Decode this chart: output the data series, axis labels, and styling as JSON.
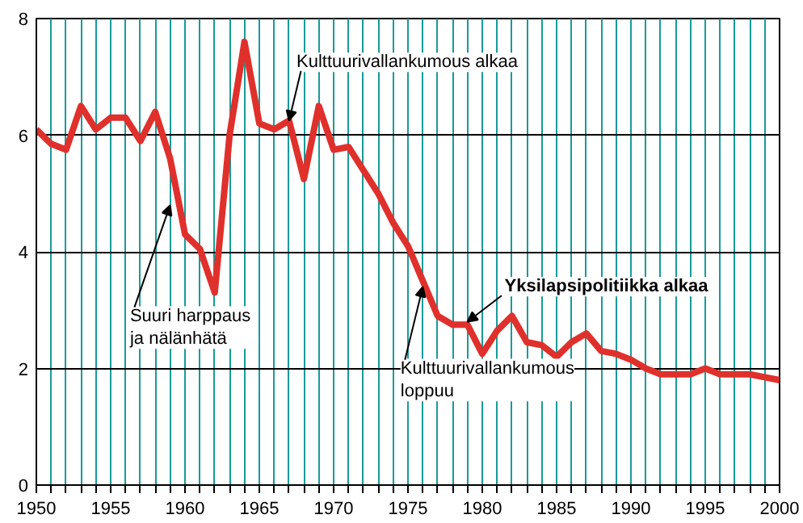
{
  "chart_data": {
    "type": "line",
    "x": [
      1950,
      1951,
      1952,
      1953,
      1954,
      1955,
      1956,
      1957,
      1958,
      1959,
      1960,
      1961,
      1962,
      1963,
      1964,
      1965,
      1966,
      1967,
      1968,
      1969,
      1970,
      1971,
      1972,
      1973,
      1974,
      1975,
      1976,
      1977,
      1978,
      1979,
      1980,
      1981,
      1982,
      1983,
      1984,
      1985,
      1986,
      1987,
      1988,
      1989,
      1990,
      1991,
      1992,
      1993,
      1994,
      1995,
      1996,
      1997,
      1998,
      1999,
      2000
    ],
    "series": [
      {
        "color": "#e0302c",
        "values": [
          6.1,
          5.85,
          5.75,
          6.5,
          6.1,
          6.3,
          6.3,
          5.9,
          6.4,
          5.6,
          4.3,
          4.05,
          3.3,
          6.0,
          7.6,
          6.2,
          6.1,
          6.25,
          5.25,
          6.5,
          5.75,
          5.8,
          5.4,
          5.0,
          4.5,
          4.1,
          3.5,
          2.9,
          2.75,
          2.75,
          2.25,
          2.65,
          2.9,
          2.45,
          2.4,
          2.2,
          2.45,
          2.6,
          2.3,
          2.25,
          2.15,
          2.0,
          1.9,
          1.9,
          1.9,
          2.0,
          1.9,
          1.9,
          1.9,
          1.85,
          1.8
        ]
      }
    ],
    "xlim": [
      1950,
      2000
    ],
    "ylim": [
      0,
      8
    ],
    "xticks": [
      1950,
      {
        "value": 1951,
        "label": null
      },
      {
        "value": 1952,
        "label": null
      },
      {
        "value": 1953,
        "label": null
      },
      {
        "value": 1954,
        "label": null
      },
      1955,
      {
        "value": 1956,
        "label": null
      },
      {
        "value": 1957,
        "label": null
      },
      {
        "value": 1958,
        "label": null
      },
      {
        "value": 1959,
        "label": null
      },
      1960,
      {
        "value": 1961,
        "label": null
      },
      {
        "value": 1962,
        "label": null
      },
      {
        "value": 1963,
        "label": null
      },
      {
        "value": 1964,
        "label": null
      },
      1965,
      {
        "value": 1966,
        "label": null
      },
      {
        "value": 1967,
        "label": null
      },
      {
        "value": 1968,
        "label": null
      },
      {
        "value": 1969,
        "label": null
      },
      1970,
      {
        "value": 1971,
        "label": null
      },
      {
        "value": 1972,
        "label": null
      },
      {
        "value": 1973,
        "label": null
      },
      {
        "value": 1974,
        "label": null
      },
      1975,
      {
        "value": 1976,
        "label": null
      },
      {
        "value": 1977,
        "label": null
      },
      {
        "value": 1978,
        "label": null
      },
      {
        "value": 1979,
        "label": null
      },
      1980,
      {
        "value": 1981,
        "label": null
      },
      {
        "value": 1982,
        "label": null
      },
      {
        "value": 1983,
        "label": null
      },
      {
        "value": 1984,
        "label": null
      },
      1985,
      {
        "value": 1986,
        "label": null
      },
      {
        "value": 1987,
        "label": null
      },
      {
        "value": 1988,
        "label": null
      },
      {
        "value": 1989,
        "label": null
      },
      1990,
      {
        "value": 1991,
        "label": null
      },
      {
        "value": 1992,
        "label": null
      },
      {
        "value": 1993,
        "label": null
      },
      {
        "value": 1994,
        "label": null
      },
      1995,
      {
        "value": 1996,
        "label": null
      },
      {
        "value": 1997,
        "label": null
      },
      {
        "value": 1998,
        "label": null
      },
      {
        "value": 1999,
        "label": null
      },
      2000
    ],
    "yticks": [
      0,
      2,
      4,
      6,
      8
    ],
    "grid": true,
    "annotations": [
      {
        "text": "Kulttuurivallankumous alkaa",
        "x": 1967,
        "y": 6.25
      },
      {
        "text": "Suuri harppaus\nja nälänhätä",
        "x": 1959,
        "y": 4.8
      },
      {
        "text": "Kulttuurivallankumous\nloppuu",
        "x": 1976,
        "y": 3.4
      },
      {
        "text": "Yksilapsipolitiikka alkaa",
        "x": 1979,
        "y": 2.8
      }
    ]
  }
}
